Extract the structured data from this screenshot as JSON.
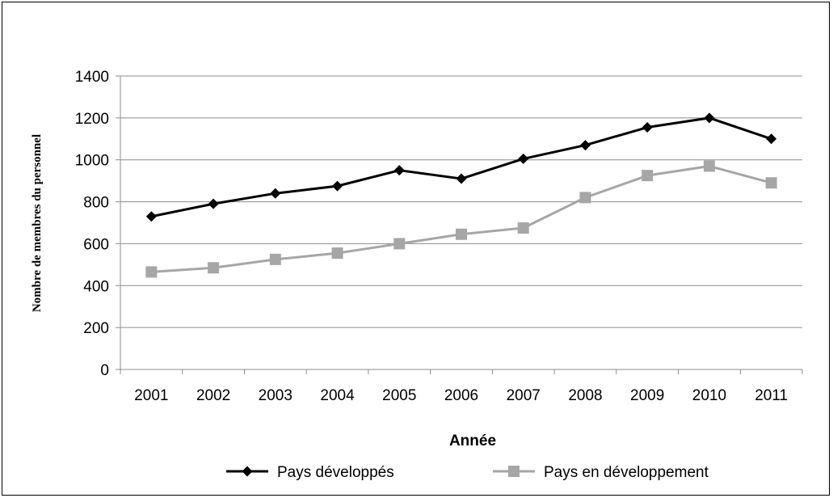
{
  "chart_data": {
    "type": "line",
    "title": "",
    "xlabel": "Année",
    "ylabel": "Nombre de membres du personnel",
    "categories": [
      "2001",
      "2002",
      "2003",
      "2004",
      "2005",
      "2006",
      "2007",
      "2008",
      "2009",
      "2010",
      "2011"
    ],
    "ylim": [
      0,
      1400
    ],
    "yticks": [
      0,
      200,
      400,
      600,
      800,
      1000,
      1200,
      1400
    ],
    "grid": true,
    "legend_position": "bottom",
    "series": [
      {
        "name": "Pays développés",
        "values": [
          730,
          790,
          840,
          875,
          950,
          910,
          1005,
          1070,
          1155,
          1200,
          1100
        ],
        "color": "#000000",
        "marker": "diamond"
      },
      {
        "name": "Pays en développement",
        "values": [
          465,
          485,
          525,
          555,
          600,
          645,
          675,
          820,
          925,
          970,
          890
        ],
        "color": "#a6a6a6",
        "marker": "square"
      }
    ]
  }
}
